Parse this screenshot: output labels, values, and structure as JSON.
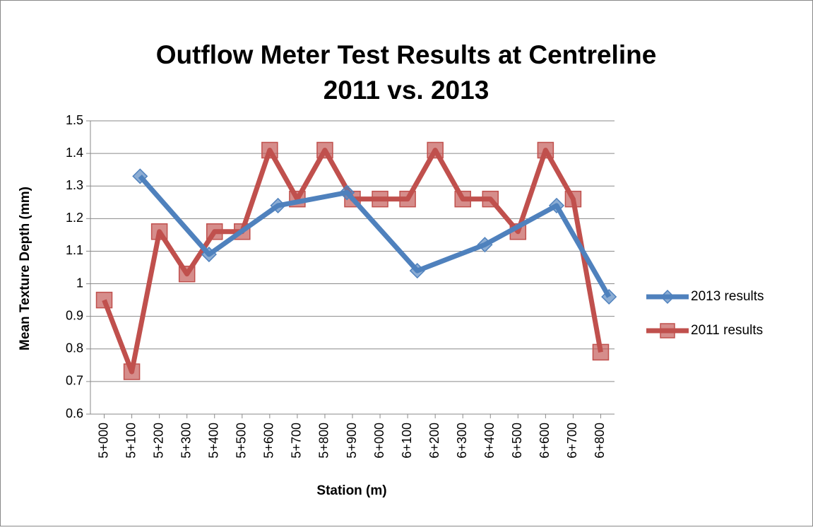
{
  "chart_data": {
    "type": "line",
    "title": "Outflow Meter Test Results at Centreline",
    "subtitle": "2011 vs. 2013",
    "x_label": "Station (m)",
    "y_label": "Mean Texture Depth (mm)",
    "xlim": [
      4950,
      6850
    ],
    "xticks": [
      {
        "value": 5000,
        "label": "5+000"
      },
      {
        "value": 5100,
        "label": "5+100"
      },
      {
        "value": 5200,
        "label": "5+200"
      },
      {
        "value": 5300,
        "label": "5+300"
      },
      {
        "value": 5400,
        "label": "5+400"
      },
      {
        "value": 5500,
        "label": "5+500"
      },
      {
        "value": 5600,
        "label": "5+600"
      },
      {
        "value": 5700,
        "label": "5+700"
      },
      {
        "value": 5800,
        "label": "5+800"
      },
      {
        "value": 5900,
        "label": "5+900"
      },
      {
        "value": 6000,
        "label": "6+000"
      },
      {
        "value": 6100,
        "label": "6+100"
      },
      {
        "value": 6200,
        "label": "6+200"
      },
      {
        "value": 6300,
        "label": "6+300"
      },
      {
        "value": 6400,
        "label": "6+400"
      },
      {
        "value": 6500,
        "label": "6+500"
      },
      {
        "value": 6600,
        "label": "6+600"
      },
      {
        "value": 6700,
        "label": "6+700"
      },
      {
        "value": 6800,
        "label": "6+800"
      }
    ],
    "ylim": [
      0.6,
      1.5
    ],
    "yticks": [
      0.6,
      0.7,
      0.8,
      0.9,
      1,
      1.1,
      1.2,
      1.3,
      1.4,
      1.5
    ],
    "grid": true,
    "legend": "right",
    "series": [
      {
        "name": "2013 results",
        "color": "#4f81bd",
        "marker": "diamond",
        "x": [
          5130,
          5380,
          5630,
          5880,
          6135,
          6380,
          6640,
          6830
        ],
        "values": [
          1.33,
          1.09,
          1.24,
          1.28,
          1.04,
          1.12,
          1.24,
          0.96
        ]
      },
      {
        "name": "2011 results",
        "color": "#c0504d",
        "marker": "square",
        "x": [
          5000,
          5100,
          5200,
          5300,
          5400,
          5500,
          5600,
          5700,
          5800,
          5900,
          6000,
          6100,
          6200,
          6300,
          6400,
          6500,
          6600,
          6700,
          6800
        ],
        "values": [
          0.95,
          0.73,
          1.16,
          1.03,
          1.16,
          1.16,
          1.41,
          1.26,
          1.41,
          1.26,
          1.26,
          1.26,
          1.41,
          1.26,
          1.26,
          1.16,
          1.41,
          1.26,
          0.79
        ]
      }
    ]
  }
}
